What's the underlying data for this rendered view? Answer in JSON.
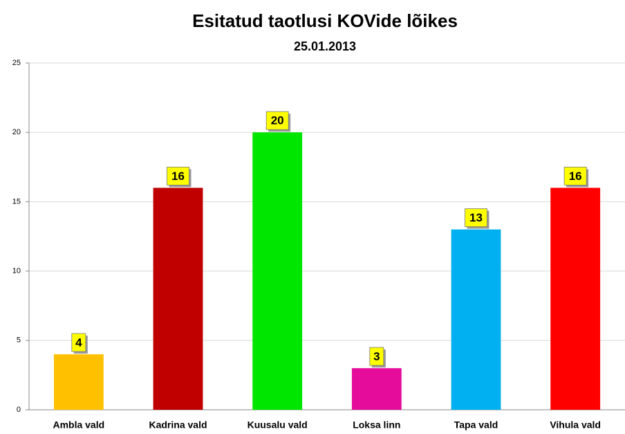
{
  "chart_data": {
    "type": "bar",
    "title": "Esitatud taotlusi KOVide lõikes",
    "subtitle": "25.01.2013",
    "categories": [
      "Ambla vald",
      "Kadrina vald",
      "Kuusalu vald",
      "Loksa linn",
      "Tapa vald",
      "Vihula vald"
    ],
    "values": [
      4,
      16,
      20,
      3,
      13,
      16
    ],
    "colors": [
      "#ffc000",
      "#c00000",
      "#00e600",
      "#e50c9c",
      "#00b0f0",
      "#ff0000"
    ],
    "ylim": [
      0,
      25
    ],
    "yticks": [
      0,
      5,
      10,
      15,
      20,
      25
    ],
    "grid": true
  }
}
